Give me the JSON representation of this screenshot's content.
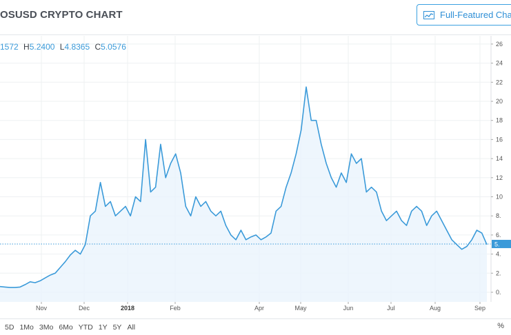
{
  "header": {
    "title": "OSUSD CRYPTO CHART",
    "full_featured_label": "Full-Featured Chart"
  },
  "ohlc": {
    "open_value": "1572",
    "high_key": "H",
    "high_value": "5.2400",
    "low_key": "L",
    "low_value": "4.8365",
    "close_key": "C",
    "close_value": "5.0576"
  },
  "range_buttons": [
    "5D",
    "1Mo",
    "3Mo",
    "6Mo",
    "YTD",
    "1Y",
    "5Y",
    "All"
  ],
  "percent_label": "%",
  "last_price_label": "5.",
  "colors": {
    "line": "#3a9ad9",
    "fill": "#eaf4fc",
    "grid": "#eef0f2"
  },
  "chart_data": {
    "type": "area",
    "series": [
      {
        "values": [
          0.6,
          0.55,
          0.5,
          0.5,
          0.55,
          0.8,
          1.1,
          1.0,
          1.2,
          1.5,
          1.8,
          2.0,
          2.6,
          3.2,
          3.9,
          4.4,
          4.0,
          5.0,
          8.0,
          8.5,
          11.5,
          9.0,
          9.5,
          8.0,
          8.5,
          9.0,
          8.0,
          10.0,
          9.5,
          16.0,
          10.5,
          11.0,
          15.5,
          12.0,
          13.5,
          14.5,
          12.5,
          9.0,
          8.0,
          10.0,
          9.0,
          9.5,
          8.5,
          8.0,
          8.5,
          7.0,
          6.0,
          5.5,
          6.5,
          5.5,
          5.8,
          6.0,
          5.5,
          5.8,
          6.2,
          8.5,
          9.0,
          11.0,
          12.5,
          14.5,
          17.0,
          21.5,
          18.0,
          18.0,
          15.5,
          13.5,
          12.0,
          11.0,
          12.5,
          11.5,
          14.5,
          13.5,
          14.0,
          10.5,
          11.0,
          10.5,
          8.5,
          7.5,
          8.0,
          8.5,
          7.5,
          7.0,
          8.5,
          9.0,
          8.5,
          7.0,
          8.0,
          8.5,
          7.5,
          6.5,
          5.5,
          5.0,
          4.5,
          4.8,
          5.5,
          6.5,
          6.2,
          5.0
        ]
      }
    ],
    "x_labels": [
      "Nov",
      "Dec",
      "2018",
      "Feb",
      "Apr",
      "May",
      "Jun",
      "Jul",
      "Aug",
      "Sep"
    ],
    "y_ticks": [
      "0.",
      "2.",
      "4.",
      "6.",
      "8.",
      "10",
      "12",
      "14",
      "16",
      "18",
      "20",
      "22",
      "24",
      "26"
    ],
    "ylim": [
      0,
      26
    ],
    "last_value": 5.0576,
    "grid": true
  }
}
